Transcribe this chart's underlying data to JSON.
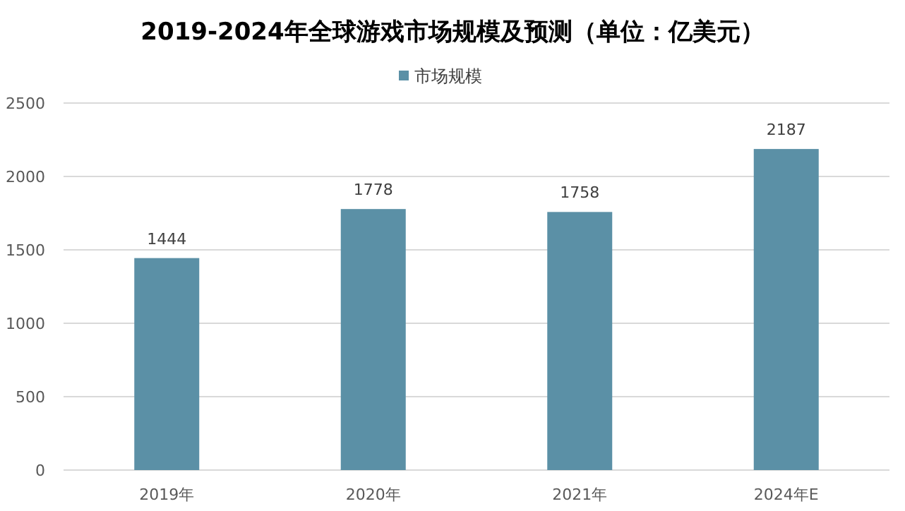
{
  "chart_data": {
    "type": "bar",
    "title": "2019-2024年全球游戏市场规模及预测（单位：亿美元）",
    "categories": [
      "2019年",
      "2020年",
      "2021年",
      "2024年E"
    ],
    "series": [
      {
        "name": "市场规模",
        "color": "#5b90a6",
        "values": [
          1444,
          1778,
          1758,
          2187
        ]
      }
    ],
    "ylim": [
      0,
      2500
    ],
    "yticks": [
      0,
      500,
      1000,
      1500,
      2000,
      2500
    ],
    "grid": "y",
    "legend": "top",
    "data_labels": true
  }
}
